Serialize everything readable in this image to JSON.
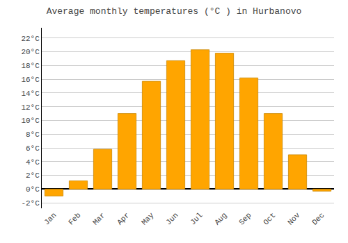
{
  "chart_data": {
    "type": "bar",
    "title": "Average monthly temperatures (°C ) in Hurbanovo",
    "categories": [
      "Jan",
      "Feb",
      "Mar",
      "Apr",
      "May",
      "Jun",
      "Jul",
      "Aug",
      "Sep",
      "Oct",
      "Nov",
      "Dec"
    ],
    "values": [
      -1.0,
      1.2,
      5.8,
      11.0,
      15.7,
      18.7,
      20.3,
      19.8,
      16.2,
      11.0,
      5.0,
      -0.3
    ],
    "color": "#FFA500",
    "ylim": [
      -2.8,
      23.5
    ],
    "yticks": [
      {
        "value": -2,
        "label": "-2°C"
      },
      {
        "value": 0,
        "label": "0°C"
      },
      {
        "value": 2,
        "label": "2°C"
      },
      {
        "value": 4,
        "label": "4°C"
      },
      {
        "value": 6,
        "label": "6°C"
      },
      {
        "value": 8,
        "label": "8°C"
      },
      {
        "value": 10,
        "label": "10°C"
      },
      {
        "value": 12,
        "label": "12°C"
      },
      {
        "value": 14,
        "label": "14°C"
      },
      {
        "value": 16,
        "label": "16°C"
      },
      {
        "value": 18,
        "label": "18°C"
      },
      {
        "value": 20,
        "label": "20°C"
      },
      {
        "value": 22,
        "label": "22°C"
      }
    ],
    "grid": true
  }
}
